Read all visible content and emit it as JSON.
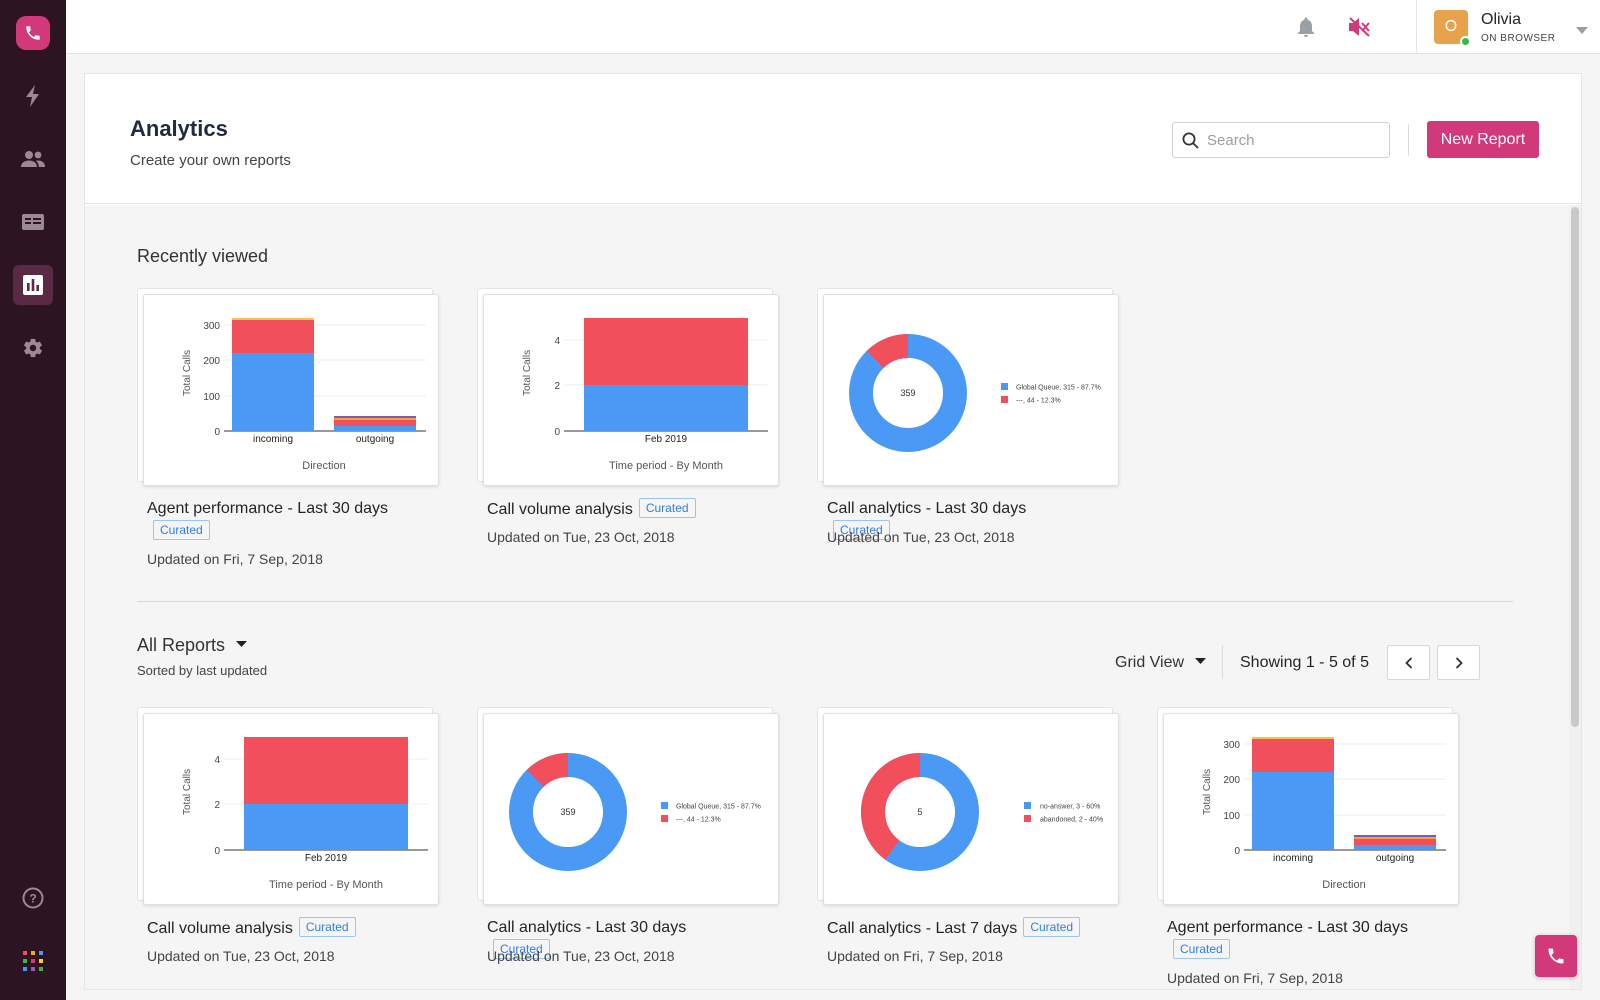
{
  "colors": {
    "brand": "#d1397b",
    "sidebar": "#2c1422",
    "blue": "#4a9af5",
    "red": "#f24f5d",
    "badge": "#2f7ee8"
  },
  "user": {
    "name": "Olivia",
    "status": "ON BROWSER",
    "initial": "O"
  },
  "page": {
    "title": "Analytics",
    "subtitle": "Create your own reports"
  },
  "search": {
    "placeholder": "Search"
  },
  "actions": {
    "new_report": "New Report"
  },
  "recent": {
    "title": "Recently viewed",
    "cards": [
      {
        "title": "Agent performance - Last 30 days",
        "badge": "Curated",
        "updated": "Updated on Fri, 7 Sep, 2018"
      },
      {
        "title": "Call volume analysis",
        "badge": "Curated",
        "updated": "Updated on Tue, 23 Oct, 2018"
      },
      {
        "title": "Call analytics - Last 30 days",
        "badge": "Curated",
        "updated": "Updated on Tue, 23 Oct, 2018"
      }
    ]
  },
  "all_reports": {
    "title": "All Reports",
    "sort": "Sorted by last updated",
    "view": "Grid View",
    "showing": "Showing 1 - 5 of 5",
    "cards": [
      {
        "title": "Call volume analysis",
        "badge": "Curated",
        "updated": "Updated on Tue, 23 Oct, 2018"
      },
      {
        "title": "Call analytics - Last 30 days",
        "badge": "Curated",
        "updated": "Updated on Tue, 23 Oct, 2018"
      },
      {
        "title": "Call analytics - Last 7 days",
        "badge": "Curated",
        "updated": "Updated on Fri, 7 Sep, 2018"
      },
      {
        "title": "Agent performance - Last 30 days",
        "badge": "Curated",
        "updated": "Updated on Fri, 7 Sep, 2018"
      }
    ]
  },
  "charts": {
    "agent": {
      "ylabel": "Total Calls",
      "xlabel": "Direction",
      "categories": [
        "incoming",
        "outgoing"
      ],
      "ticks": [
        "300",
        "200",
        "100",
        "0"
      ]
    },
    "volume": {
      "ylabel": "Total Calls",
      "xlabel": "Time period - By Month",
      "category": "Feb 2019",
      "ticks": [
        "4",
        "2",
        "0"
      ]
    },
    "donut30": {
      "center": "359",
      "legend": [
        "Global Queue,  315 - 87.7%",
        "---,  44 - 12.3%"
      ]
    },
    "donut7": {
      "center": "5",
      "legend": [
        "no-answer,  3 - 60%",
        "abandoned,  2 - 40%"
      ]
    }
  },
  "chart_data": [
    {
      "type": "bar",
      "title": "Agent performance - Last 30 days",
      "xlabel": "Direction",
      "ylabel": "Total Calls",
      "categories": [
        "incoming",
        "outgoing"
      ],
      "ylim": [
        0,
        330
      ],
      "series": [
        {
          "name": "blue",
          "values": [
            220,
            12
          ]
        },
        {
          "name": "red",
          "values": [
            92,
            20
          ]
        },
        {
          "name": "orange",
          "values": [
            4,
            8
          ]
        },
        {
          "name": "purple",
          "values": [
            0,
            4
          ]
        }
      ]
    },
    {
      "type": "bar",
      "title": "Call volume analysis",
      "xlabel": "Time period - By Month",
      "ylabel": "Total Calls",
      "categories": [
        "Feb 2019"
      ],
      "ylim": [
        0,
        5
      ],
      "series": [
        {
          "name": "blue",
          "values": [
            2
          ]
        },
        {
          "name": "red",
          "values": [
            3
          ]
        }
      ]
    },
    {
      "type": "pie",
      "title": "Call analytics - Last 30 days",
      "center": 359,
      "labels": [
        "Global Queue",
        "---"
      ],
      "values": [
        315,
        44
      ],
      "percent": [
        87.7,
        12.3
      ]
    },
    {
      "type": "pie",
      "title": "Call analytics - Last 7 days",
      "center": 5,
      "labels": [
        "no-answer",
        "abandoned"
      ],
      "values": [
        3,
        2
      ],
      "percent": [
        60,
        40
      ]
    }
  ]
}
